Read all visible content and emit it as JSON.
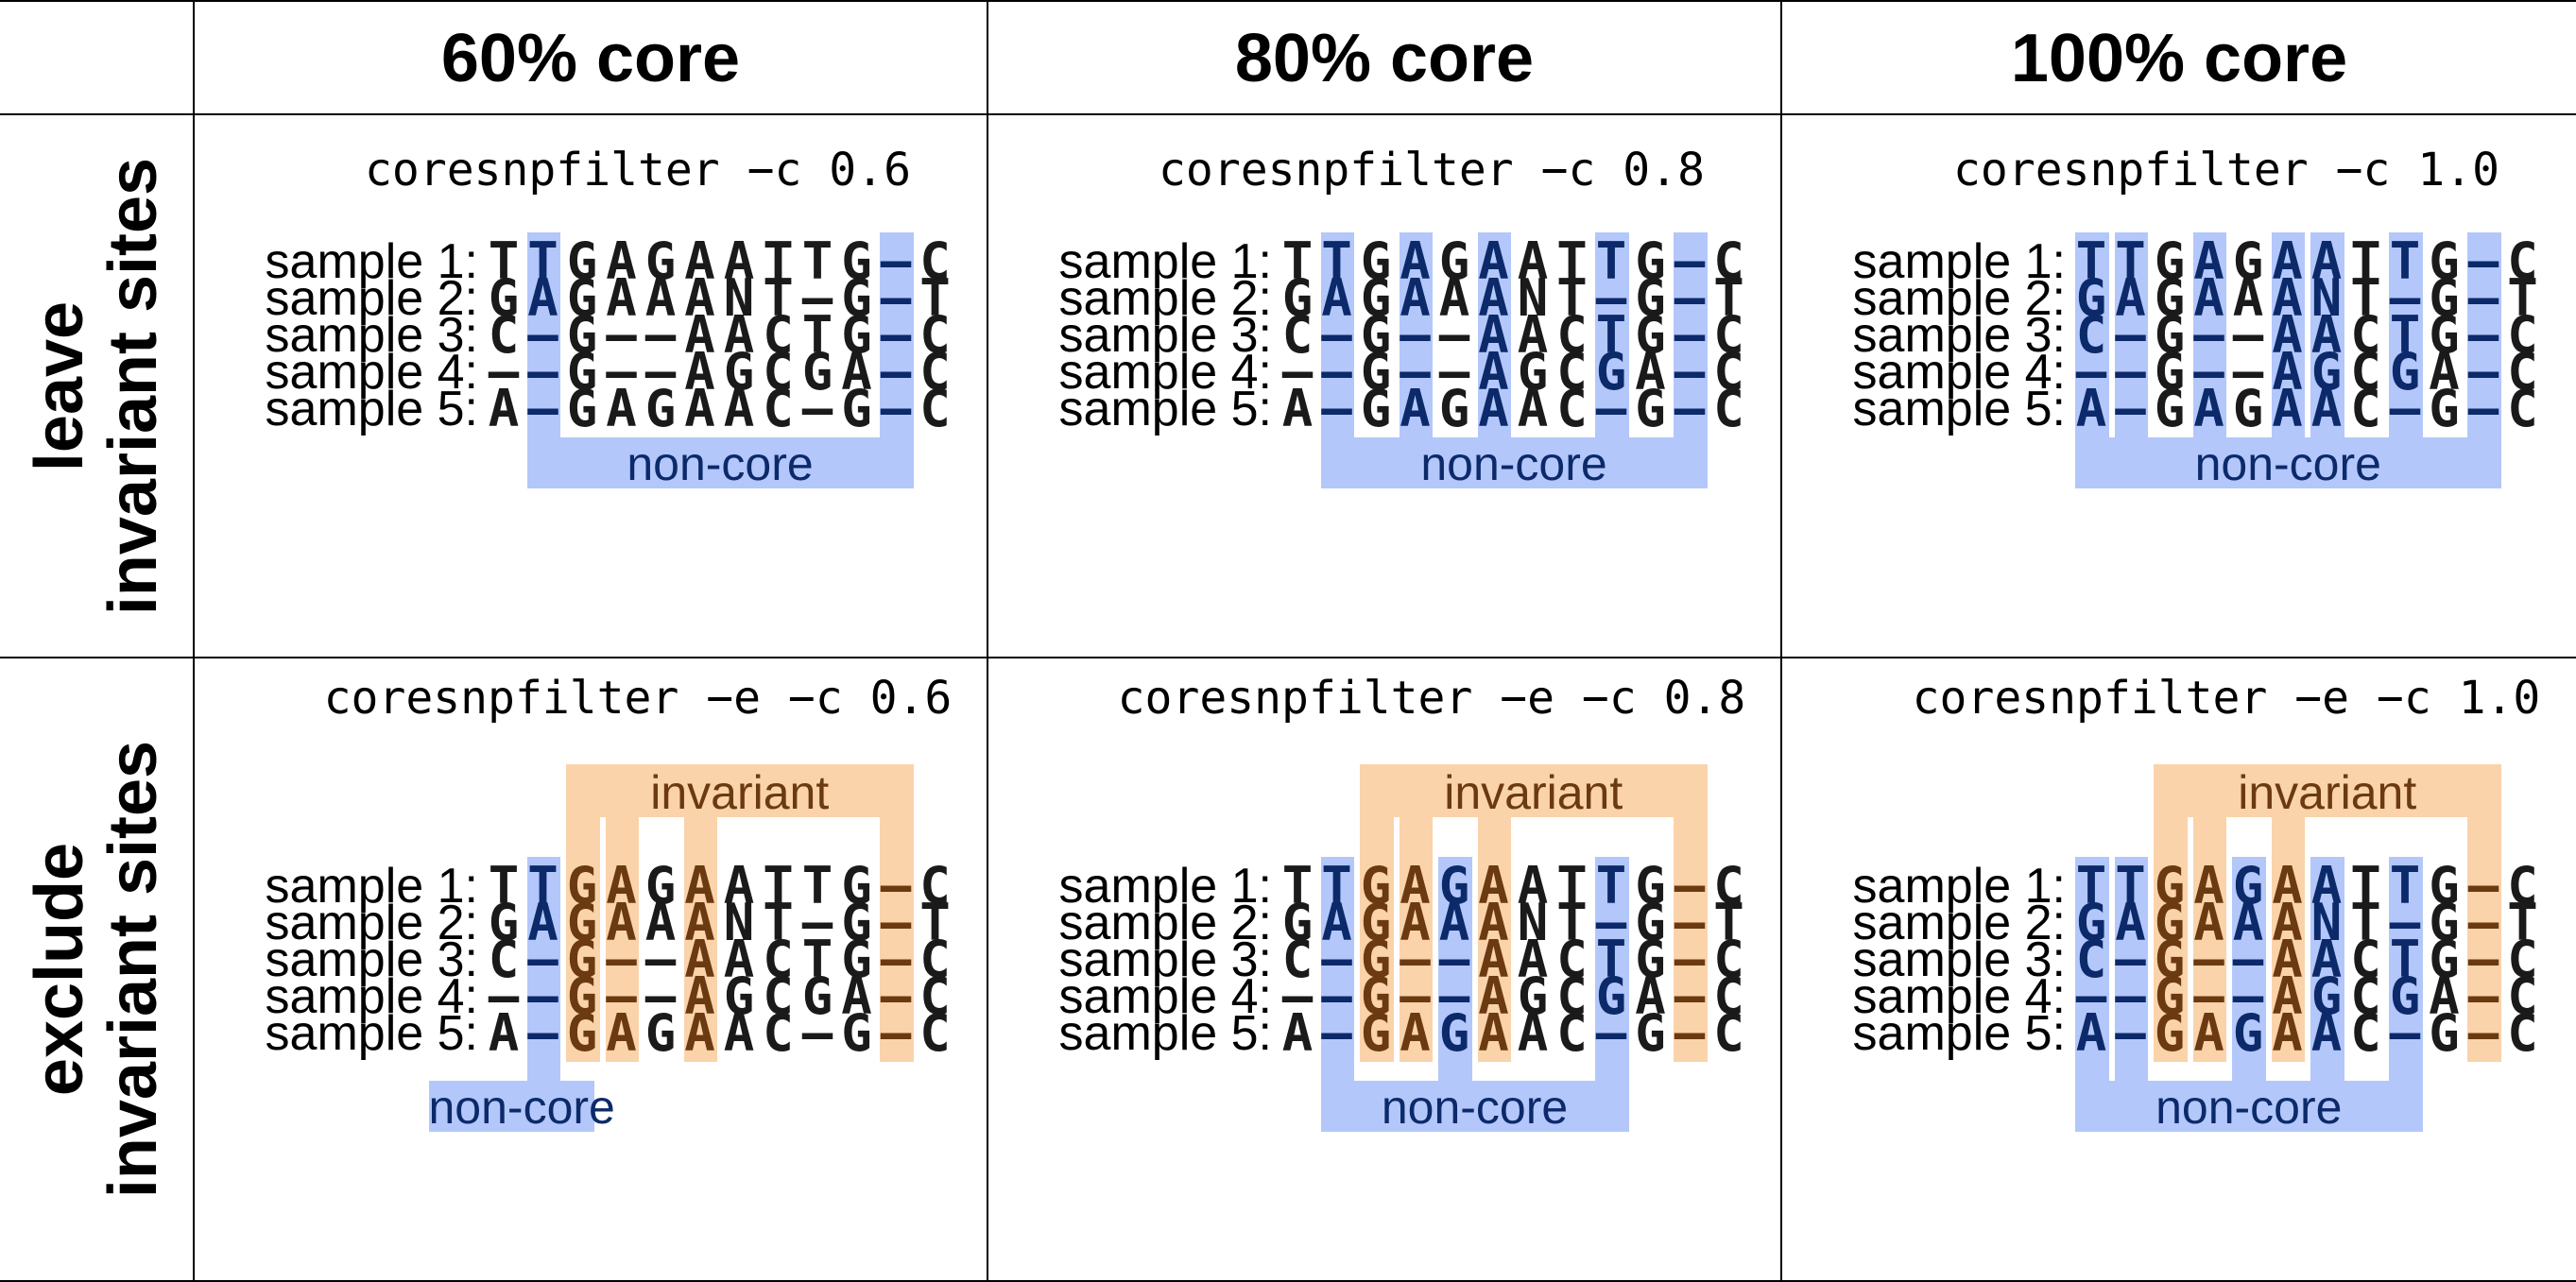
{
  "column_headers": [
    "60% core",
    "80% core",
    "100% core"
  ],
  "row_headers": [
    [
      "leave",
      "invariant sites"
    ],
    [
      "exclude",
      "invariant sites"
    ]
  ],
  "sample_labels": [
    "sample 1:",
    "sample 2:",
    "sample 3:",
    "sample 4:",
    "sample 5:"
  ],
  "alignment": [
    "TTGAGAATTG-C",
    "GAGAAANT-G-T",
    "C-G--AACTG-C",
    "--G--AGCGA-C",
    "A-GAGAAC-G-C"
  ],
  "band_labels": {
    "core": "non-core",
    "invariant": "invariant"
  },
  "colors": {
    "core_band": "#b3c7fb",
    "invariant_band": "#fad3aa",
    "text_default": "#1a1a1a",
    "text_core": "#0c2a6a",
    "text_invariant": "#6b3a10",
    "core_label": "#0c2a6a",
    "invariant_label": "#6b3a10"
  },
  "panels": [
    {
      "command": "coresnpfilter −c 0.6",
      "core_columns": [
        1,
        10
      ],
      "invariant_columns": []
    },
    {
      "command": "coresnpfilter −c 0.8",
      "core_columns": [
        1,
        3,
        5,
        8,
        10
      ],
      "invariant_columns": []
    },
    {
      "command": "coresnpfilter −c 1.0",
      "core_columns": [
        0,
        1,
        3,
        5,
        6,
        8,
        10
      ],
      "invariant_columns": []
    },
    {
      "command": "coresnpfilter −e −c 0.6",
      "core_columns": [
        1
      ],
      "invariant_columns": [
        2,
        3,
        5,
        10
      ]
    },
    {
      "command": "coresnpfilter −e −c 0.8",
      "core_columns": [
        1,
        4,
        8
      ],
      "invariant_columns": [
        2,
        3,
        5,
        10
      ]
    },
    {
      "command": "coresnpfilter −e −c 1.0",
      "core_columns": [
        0,
        1,
        4,
        6,
        8
      ],
      "invariant_columns": [
        2,
        3,
        5,
        10
      ]
    }
  ]
}
